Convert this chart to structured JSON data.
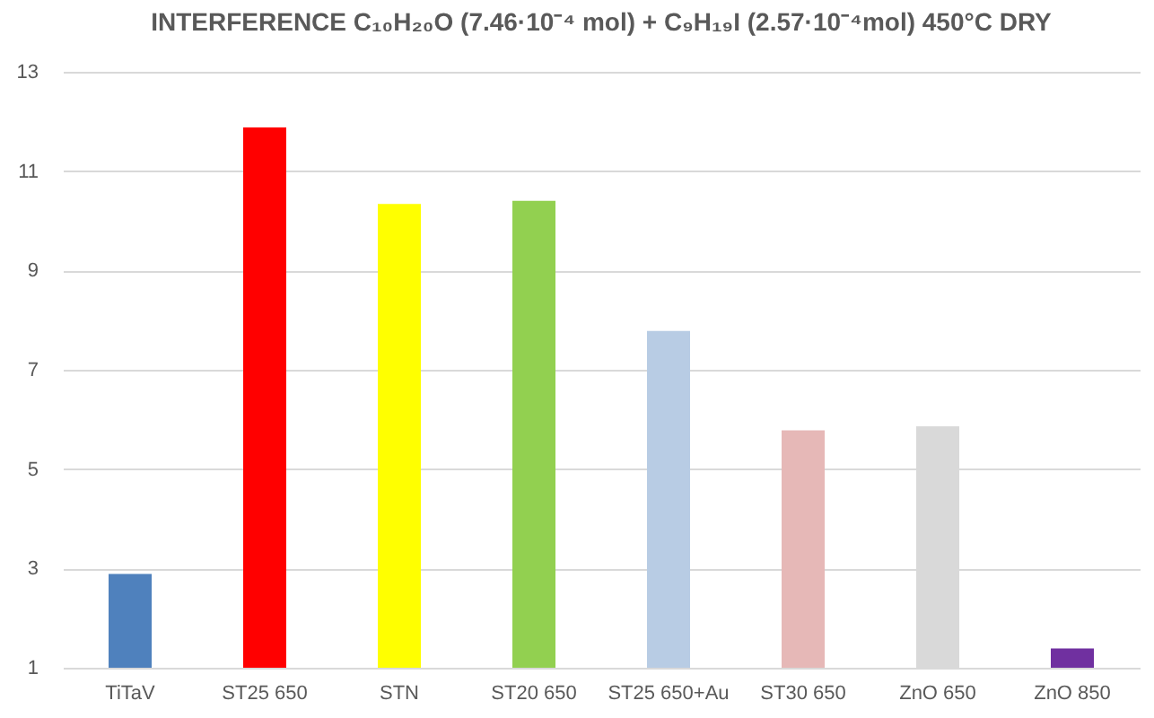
{
  "chart_data": {
    "type": "bar",
    "title": "INTERFERENCE C₁₀H₂₀O (7.46·10⁻⁴ mol) + C₉H₁₉I (2.57·10⁻⁴mol) 450°C DRY",
    "categories": [
      "TiTaV",
      "ST25 650",
      "STN",
      "ST20 650",
      "ST25 650+Au",
      "ST30 650",
      "ZnO 650",
      "ZnO 850"
    ],
    "values": [
      2.89,
      11.88,
      10.34,
      10.4,
      7.78,
      5.78,
      5.86,
      1.39
    ],
    "colors": [
      "#4f81bd",
      "#ff0000",
      "#ffff00",
      "#92d050",
      "#b8cce4",
      "#e6b8b7",
      "#d9d9d9",
      "#7030a0"
    ],
    "ylim": [
      1,
      13
    ],
    "yticks": [
      1,
      3,
      5,
      7,
      9,
      11,
      13
    ],
    "grid": "y"
  }
}
